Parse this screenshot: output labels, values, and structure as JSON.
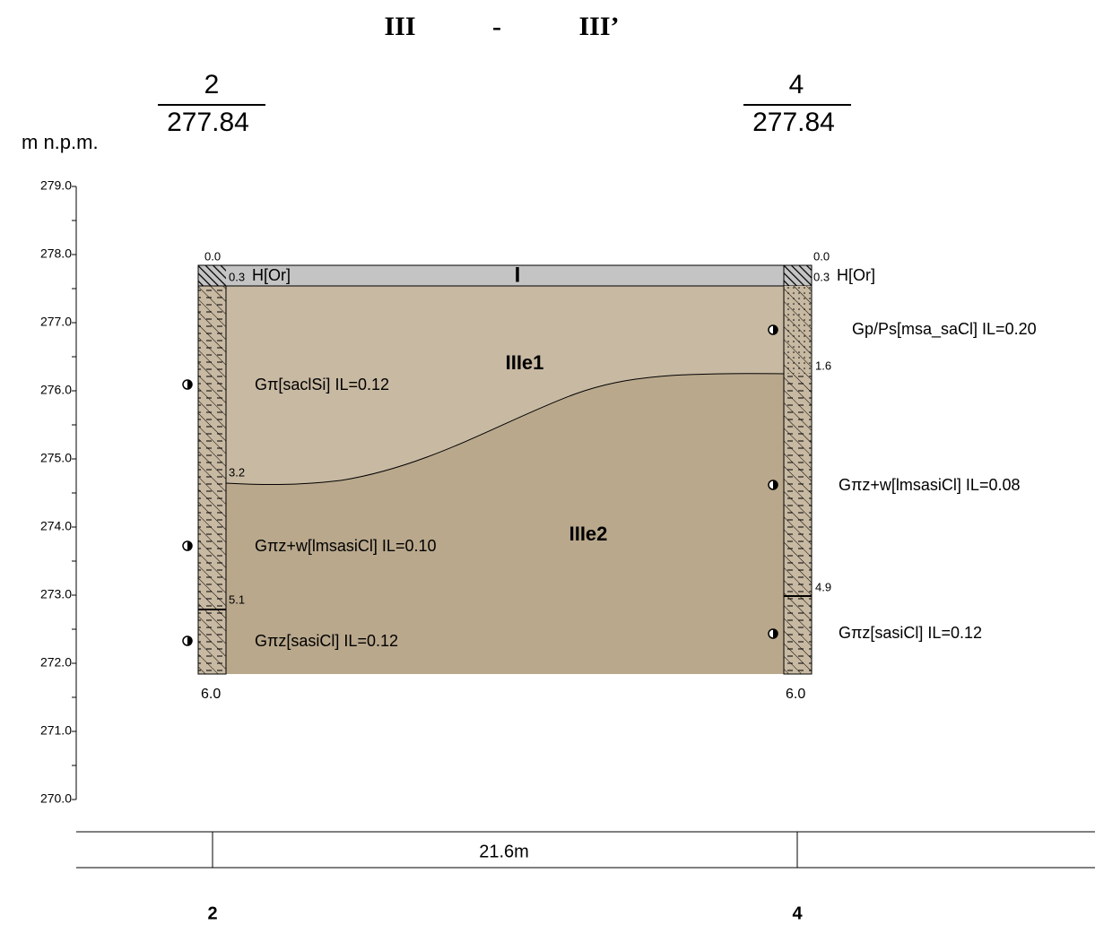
{
  "title": {
    "left": "III",
    "separator": "-",
    "right": "III’"
  },
  "axis": {
    "label": "m n.p.m.",
    "ticks": [
      "279.0",
      "278.0",
      "277.0",
      "276.0",
      "275.0",
      "274.0",
      "273.0",
      "272.0",
      "271.0",
      "270.0"
    ]
  },
  "boreholes": [
    {
      "name": "2",
      "elevation": "277.84",
      "top": "0.0",
      "top_layer_depth": "0.3",
      "top_layer": "H[Or]",
      "depths": [
        "3.2",
        "5.1"
      ],
      "bottom": "6.0",
      "layers": [
        "Gπ[saclSi]  IL=0.12",
        "Gπz+w[lmsasiCl]  IL=0.10",
        "Gπz[sasiCl]  IL=0.12"
      ]
    },
    {
      "name": "4",
      "elevation": "277.84",
      "top": "0.0",
      "top_layer_depth": "0.3",
      "top_layer": "H[Or]",
      "depths": [
        "1.6",
        "4.9"
      ],
      "bottom": "6.0",
      "layers": [
        "Gp/Ps[msa_saCl]  IL=0.20",
        "Gπz+w[lmsasiCl]  IL=0.08",
        "Gπz[sasiCl]  IL=0.12"
      ]
    }
  ],
  "units": [
    "IIIe1",
    "IIIe2"
  ],
  "surface_marker": "I",
  "distance": "21.6m",
  "footer": [
    "2",
    "4"
  ]
}
